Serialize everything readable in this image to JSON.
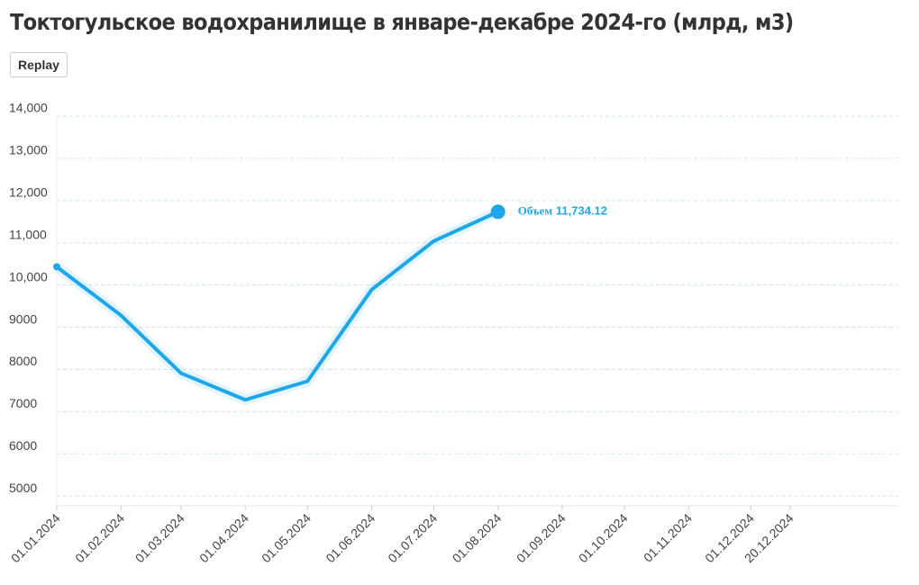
{
  "chart_data": {
    "type": "line",
    "title": "Токтогульское водохранилище в январе-декабре 2024-го (млрд, м3)",
    "x": [
      "01.01.2024",
      "01.02.2024",
      "01.03.2024",
      "01.04.2024",
      "01.05.2024",
      "01.06.2024",
      "01.07.2024",
      "01.08.2024"
    ],
    "series": [
      {
        "name": "Объем",
        "color": "#1ea7e8",
        "values": [
          10430,
          9280,
          7910,
          7280,
          7720,
          9890,
          11040,
          11734.12
        ],
        "value_labels": [
          null,
          null,
          null,
          null,
          null,
          null,
          null,
          "11,734.12"
        ]
      }
    ],
    "xticks": [
      "01.01.2024",
      "01.02.2024",
      "01.03.2024",
      "01.04.2024",
      "01.05.2024",
      "01.06.2024",
      "01.07.2024",
      "01.08.2024",
      "01.09.2024",
      "01.10.2024",
      "01.11.2024",
      "01.12.2024",
      "20.12.2024"
    ],
    "ylim": [
      4770,
      14000
    ],
    "yticks": [
      5000,
      6000,
      7000,
      8000,
      9000,
      {
        "value": 10000,
        "label": "10,000"
      },
      {
        "value": 11000,
        "label": "11,000"
      },
      {
        "value": 12000,
        "label": "12,000"
      },
      {
        "value": 13000,
        "label": "13,000"
      },
      {
        "value": 14000,
        "label": "14,000"
      }
    ],
    "grid": true
  },
  "replay_button": "Replay"
}
